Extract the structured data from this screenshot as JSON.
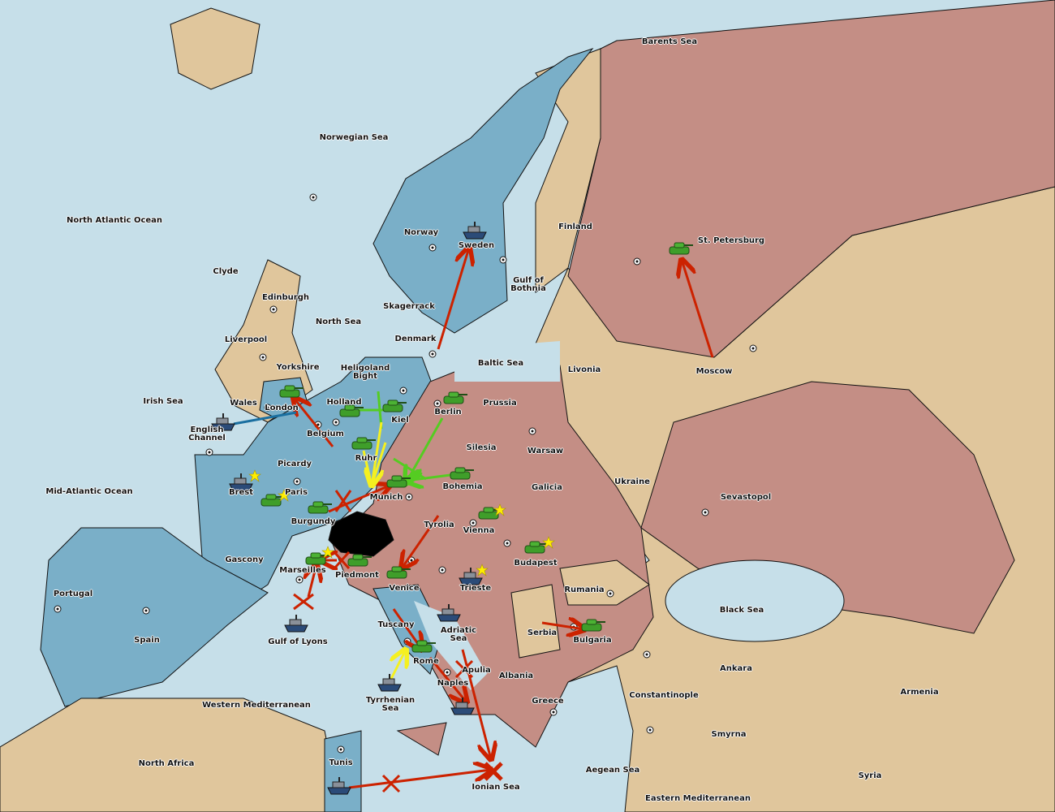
{
  "colors": {
    "sea": "#c6dfe9",
    "player_blue": "#7aafc8",
    "player_red": "#c48e85",
    "neutral": "#e0c69c",
    "army": "#3f9e2a",
    "fleet": "#6a7078",
    "order_red": "#cc2200",
    "order_green": "#55cc22",
    "order_yellow": "#f5f020",
    "support_blue": "#1a6fa0"
  },
  "labels": {
    "barents": "Barents Sea",
    "norwegian": "Norwegian Sea",
    "north_atlantic": "North Atlantic Ocean",
    "clyde": "Clyde",
    "edinburgh": "Edinburgh",
    "north_sea": "North Sea",
    "liverpool": "Liverpool",
    "yorkshire": "Yorkshire",
    "irish": "Irish Sea",
    "wales": "Wales",
    "london": "London",
    "english_channel": "English Channel",
    "holland": "Holland",
    "belgium": "Belgium",
    "heligoland": "Heligoland Bight",
    "kiel": "Kiel",
    "berlin": "Berlin",
    "prussia": "Prussia",
    "ruhr": "Ruhr",
    "picardy": "Picardy",
    "brest": "Brest",
    "paris": "Paris",
    "mid_atlantic": "Mid-Atlantic Ocean",
    "burgundy": "Burgundy",
    "munich": "Munich",
    "silesia": "Silesia",
    "bohemia": "Bohemia",
    "warsaw": "Warsaw",
    "galicia": "Galicia",
    "ukraine": "Ukraine",
    "sevastopol": "Sevastopol",
    "moscow": "Moscow",
    "livonia": "Livonia",
    "st_petersburg": "St. Petersburg",
    "finland": "Finland",
    "norway": "Norway",
    "sweden": "Sweden",
    "gulf_bothnia": "Gulf of Bothnia",
    "skagerrack": "Skagerrack",
    "denmark": "Denmark",
    "baltic": "Baltic Sea",
    "tyrolia": "Tyrolia",
    "vienna": "Vienna",
    "budapest": "Budapest",
    "gascony": "Gascony",
    "marseilles": "Marseilles",
    "piedmont": "Piedmont",
    "venice": "Venice",
    "trieste": "Trieste",
    "portugal": "Portugal",
    "spain": "Spain",
    "gulf_lyons": "Gulf of Lyons",
    "tuscany": "Tuscany",
    "adriatic": "Adriatic Sea",
    "rome": "Rome",
    "apulia": "Apulia",
    "naples": "Naples",
    "albania": "Albania",
    "serbia": "Serbia",
    "bulgaria": "Bulgaria",
    "rumania": "Rumania",
    "black_sea": "Black Sea",
    "ankara": "Ankara",
    "armenia": "Armenia",
    "constantinople": "Constantinople",
    "greece": "Greece",
    "smyrna": "Smyrna",
    "aegean": "Aegean Sea",
    "syria": "Syria",
    "eastern_med": "Eastern Mediterranean",
    "ionian": "Ionian Sea",
    "tyrrhenian": "Tyrrhenian Sea",
    "western_med": "Western Mediterranean",
    "north_africa": "North Africa",
    "tunis": "Tunis"
  }
}
